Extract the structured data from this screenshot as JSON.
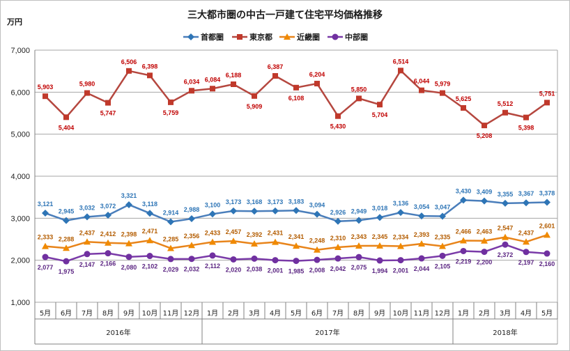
{
  "chart_data": {
    "type": "line",
    "title": "三大都市圏の中古一戸建て住宅平均価格推移",
    "unit_label": "万円",
    "ylim": [
      1000,
      7000
    ],
    "yticks": [
      "1,000",
      "2,000",
      "3,000",
      "4,000",
      "5,000",
      "6,000",
      "7,000"
    ],
    "grid": true,
    "legend_position": "top-center",
    "categories": [
      "5月",
      "6月",
      "7月",
      "8月",
      "9月",
      "10月",
      "11月",
      "12月",
      "1月",
      "2月",
      "3月",
      "4月",
      "5月",
      "6月",
      "7月",
      "8月",
      "9月",
      "10月",
      "11月",
      "12月",
      "1月",
      "2月",
      "3月",
      "4月",
      "5月"
    ],
    "years": [
      {
        "label": "2016年",
        "start": 0,
        "end": 7
      },
      {
        "label": "2017年",
        "start": 8,
        "end": 19
      },
      {
        "label": "2018年",
        "start": 20,
        "end": 24
      }
    ],
    "series": [
      {
        "name": "首都圏",
        "color": "#2e75b6",
        "line_color": "#4a7ebb",
        "label_color": "#2e75b6",
        "marker": "diamond",
        "values": [
          3121,
          2945,
          3032,
          3072,
          3321,
          3118,
          2914,
          2988,
          3100,
          3173,
          3168,
          3173,
          3183,
          3094,
          2926,
          2949,
          3018,
          3136,
          3054,
          3047,
          3430,
          3409,
          3355,
          3367,
          3378
        ],
        "labels": [
          "3,121",
          "2,945",
          "3,032",
          "3,072",
          "3,321",
          "3,118",
          "2,914",
          "2,988",
          "3,100",
          "3,173",
          "3,168",
          "3,173",
          "3,183",
          "3,094",
          "2,926",
          "2,949",
          "3,018",
          "3,136",
          "3,054",
          "3,047",
          "3,430",
          "3,409",
          "3,355",
          "3,367",
          "3,378"
        ]
      },
      {
        "name": "東京都",
        "color": "#c0392b",
        "line_color": "#b5473f",
        "label_color": "#c00000",
        "marker": "square",
        "values": [
          5903,
          5404,
          5980,
          5747,
          6506,
          6398,
          5759,
          6034,
          6084,
          6188,
          5909,
          6387,
          6108,
          6204,
          5430,
          5850,
          5704,
          6514,
          6044,
          5979,
          5625,
          5208,
          5512,
          5398,
          5751
        ],
        "labels": [
          "5,903",
          "5,404",
          "5,980",
          "5,747",
          "6,506",
          "6,398",
          "5,759",
          "6,034",
          "6,084",
          "6,188",
          "5,909",
          "6,387",
          "6,108",
          "6,204",
          "5,430",
          "5,850",
          "5,704",
          "6,514",
          "6,044",
          "5,979",
          "5,625",
          "5,208",
          "5,512",
          "5,398",
          "5,751"
        ]
      },
      {
        "name": "近畿圏",
        "color": "#f08a00",
        "line_color": "#e8841a",
        "label_color": "#b35c00",
        "marker": "triangle",
        "values": [
          2333,
          2288,
          2437,
          2412,
          2398,
          2471,
          2285,
          2356,
          2433,
          2457,
          2392,
          2431,
          2341,
          2248,
          2310,
          2343,
          2345,
          2334,
          2393,
          2335,
          2466,
          2463,
          2547,
          2437,
          2601
        ],
        "labels": [
          "2,333",
          "2,288",
          "2,437",
          "2,412",
          "2,398",
          "2,471",
          "2,285",
          "2,356",
          "2,433",
          "2,457",
          "2,392",
          "2,431",
          "2,341",
          "2,248",
          "2,310",
          "2,343",
          "2,345",
          "2,334",
          "2,393",
          "2,335",
          "2,466",
          "2,463",
          "2,547",
          "2,437",
          "2,601"
        ]
      },
      {
        "name": "中部圏",
        "color": "#7030a0",
        "line_color": "#7a3aa8",
        "label_color": "#5b2582",
        "marker": "circle",
        "values": [
          2077,
          1975,
          2147,
          2166,
          2080,
          2102,
          2029,
          2032,
          2112,
          2020,
          2038,
          2001,
          1985,
          2008,
          2042,
          2075,
          1994,
          2001,
          2044,
          2105,
          2219,
          2200,
          2372,
          2197,
          2160
        ],
        "labels": [
          "2,077",
          "1,975",
          "2,147",
          "2,166",
          "2,080",
          "2,102",
          "2,029",
          "2,032",
          "2,112",
          "2,020",
          "2,038",
          "2,001",
          "1,985",
          "2,008",
          "2,042",
          "2,075",
          "1,994",
          "2,001",
          "2,044",
          "2,105",
          "2,219",
          "2,200",
          "2,372",
          "2,197",
          "2,160"
        ]
      }
    ]
  }
}
